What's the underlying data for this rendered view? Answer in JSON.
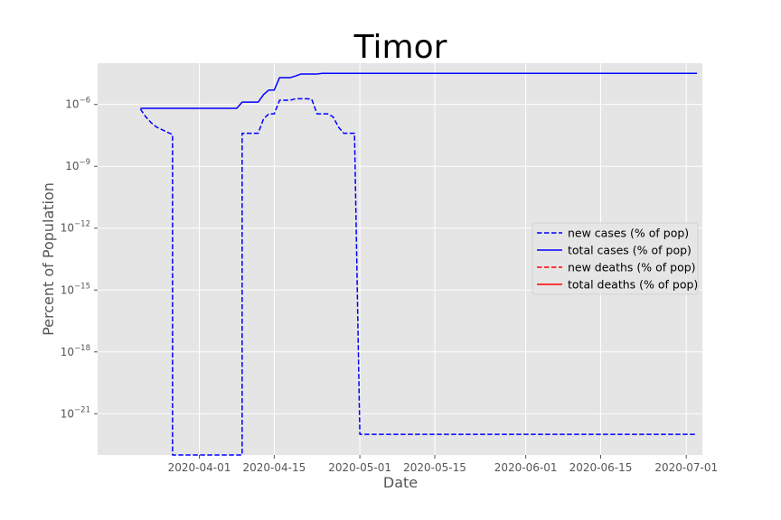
{
  "chart_data": {
    "type": "line",
    "title": "Timor",
    "xlabel": "Date",
    "ylabel": "Percent of Population",
    "x_scale": "date",
    "y_scale": "log",
    "xlim": [
      "2020-03-13",
      "2020-07-04"
    ],
    "ylim": [
      1e-23,
      0.0001
    ],
    "grid": true,
    "legend_position": "center-right",
    "x_ticks": [
      "2020-04-01",
      "2020-04-15",
      "2020-05-01",
      "2020-05-15",
      "2020-06-01",
      "2020-06-15",
      "2020-07-01"
    ],
    "y_ticks": [
      {
        "value": 1e-06,
        "base": "10",
        "exp": "−6"
      },
      {
        "value": 1e-09,
        "base": "10",
        "exp": "−9"
      },
      {
        "value": 1e-12,
        "base": "10",
        "exp": "−12"
      },
      {
        "value": 1e-15,
        "base": "10",
        "exp": "−15"
      },
      {
        "value": 1e-18,
        "base": "10",
        "exp": "−18"
      },
      {
        "value": 1e-21,
        "base": "10",
        "exp": "−21"
      }
    ],
    "series": [
      {
        "name": "new cases (% of pop)",
        "color": "#0000ff",
        "style": "dashed",
        "points": [
          [
            "2020-03-21",
            6e-07
          ],
          [
            "2020-03-22",
            2.5e-07
          ],
          [
            "2020-03-23",
            1.3e-07
          ],
          [
            "2020-03-24",
            8e-08
          ],
          [
            "2020-03-25",
            6e-08
          ],
          [
            "2020-03-26",
            4.5e-08
          ],
          [
            "2020-03-27",
            3.5e-08
          ],
          [
            "2020-03-27",
            1e-23
          ],
          [
            "2020-04-09",
            1e-23
          ],
          [
            "2020-04-09",
            4e-08
          ],
          [
            "2020-04-12",
            4e-08
          ],
          [
            "2020-04-13",
            2e-07
          ],
          [
            "2020-04-14",
            3.5e-07
          ],
          [
            "2020-04-15",
            3.5e-07
          ],
          [
            "2020-04-16",
            1.6e-06
          ],
          [
            "2020-04-17",
            1.6e-06
          ],
          [
            "2020-04-18",
            1.6e-06
          ],
          [
            "2020-04-19",
            1.9e-06
          ],
          [
            "2020-04-21",
            1.9e-06
          ],
          [
            "2020-04-22",
            1.8e-06
          ],
          [
            "2020-04-23",
            3.5e-07
          ],
          [
            "2020-04-25",
            3.5e-07
          ],
          [
            "2020-04-26",
            2.5e-07
          ],
          [
            "2020-04-27",
            8e-08
          ],
          [
            "2020-04-28",
            4e-08
          ],
          [
            "2020-04-30",
            4e-08
          ],
          [
            "2020-05-01",
            1e-22
          ],
          [
            "2020-07-03",
            1e-22
          ]
        ]
      },
      {
        "name": "total cases (% of pop)",
        "color": "#0000ff",
        "style": "solid",
        "points": [
          [
            "2020-03-21",
            6.5e-07
          ],
          [
            "2020-04-08",
            6.5e-07
          ],
          [
            "2020-04-09",
            1.3e-06
          ],
          [
            "2020-04-12",
            1.3e-06
          ],
          [
            "2020-04-13",
            3e-06
          ],
          [
            "2020-04-14",
            5e-06
          ],
          [
            "2020-04-15",
            5e-06
          ],
          [
            "2020-04-16",
            2e-05
          ],
          [
            "2020-04-18",
            2e-05
          ],
          [
            "2020-04-19",
            2.4e-05
          ],
          [
            "2020-04-20",
            3e-05
          ],
          [
            "2020-04-23",
            3e-05
          ],
          [
            "2020-04-24",
            3.2e-05
          ],
          [
            "2020-07-03",
            3.2e-05
          ]
        ]
      },
      {
        "name": "new deaths (% of pop)",
        "color": "#ff0000",
        "style": "dashed",
        "points": []
      },
      {
        "name": "total deaths (% of pop)",
        "color": "#ff0000",
        "style": "solid",
        "points": []
      }
    ]
  }
}
